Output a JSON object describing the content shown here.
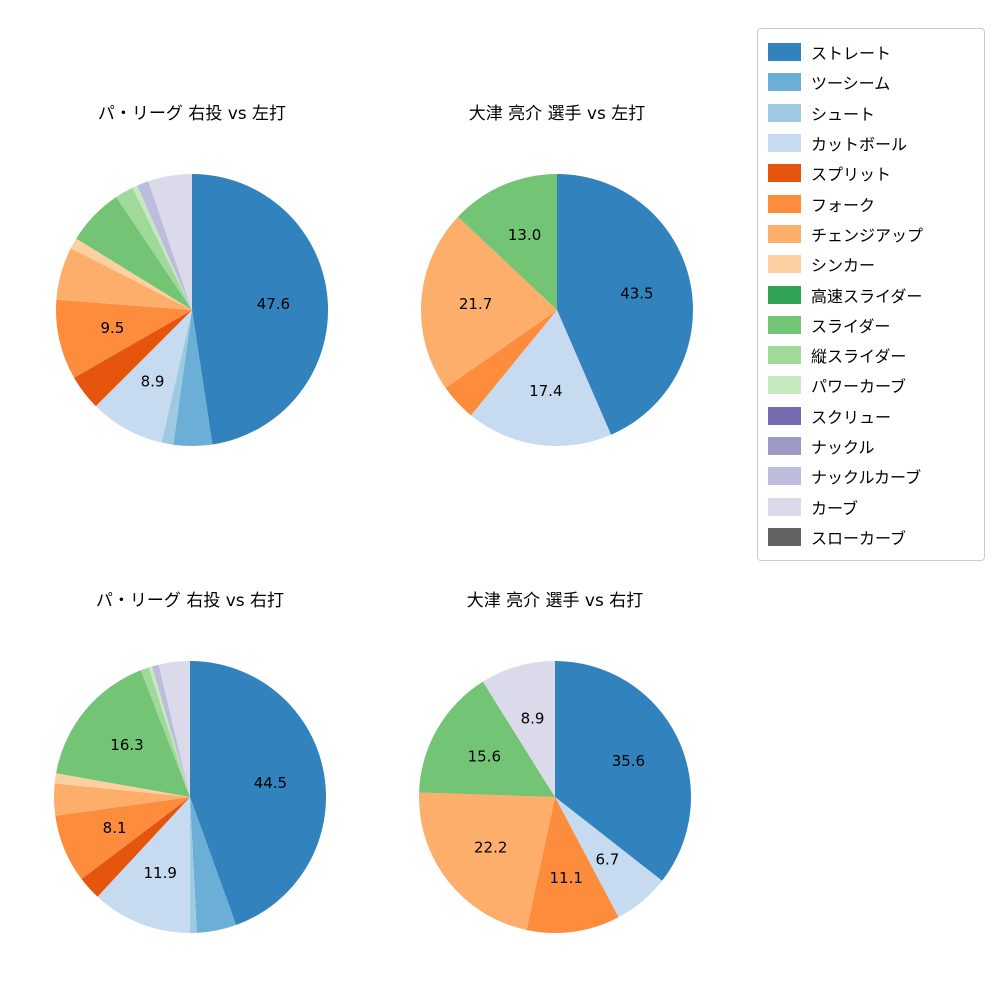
{
  "legend": {
    "items": [
      {
        "label": "ストレート",
        "color": "#3182bd"
      },
      {
        "label": "ツーシーム",
        "color": "#6baed6"
      },
      {
        "label": "シュート",
        "color": "#9ecae1"
      },
      {
        "label": "カットボール",
        "color": "#c6dbef"
      },
      {
        "label": "スプリット",
        "color": "#e6550d"
      },
      {
        "label": "フォーク",
        "color": "#fd8d3c"
      },
      {
        "label": "チェンジアップ",
        "color": "#fdae6b"
      },
      {
        "label": "シンカー",
        "color": "#fdd0a2"
      },
      {
        "label": "高速スライダー",
        "color": "#31a354"
      },
      {
        "label": "スライダー",
        "color": "#74c476"
      },
      {
        "label": "縦スライダー",
        "color": "#a1d99b"
      },
      {
        "label": "パワーカーブ",
        "color": "#c7e9c0"
      },
      {
        "label": "スクリュー",
        "color": "#756bb1"
      },
      {
        "label": "ナックル",
        "color": "#9e9ac8"
      },
      {
        "label": "ナックルカーブ",
        "color": "#bcbddc"
      },
      {
        "label": "カーブ",
        "color": "#dadaeb"
      },
      {
        "label": "スローカーブ",
        "color": "#636363"
      }
    ]
  },
  "chart_data": [
    {
      "type": "pie",
      "title": "パ・リーグ 右投 vs 左打",
      "start_angle_deg": 0,
      "direction": "clockwise",
      "slices": [
        {
          "label": "ストレート",
          "value": 47.6,
          "text": "47.6"
        },
        {
          "label": "ツーシーム",
          "value": 4.6,
          "text": null
        },
        {
          "label": "シュート",
          "value": 1.4,
          "text": null
        },
        {
          "label": "カットボール",
          "value": 8.9,
          "text": "8.9"
        },
        {
          "label": "スプリット",
          "value": 4.2,
          "text": null
        },
        {
          "label": "フォーク",
          "value": 9.5,
          "text": "9.5"
        },
        {
          "label": "チェンジアップ",
          "value": 6.3,
          "text": null
        },
        {
          "label": "シンカー",
          "value": 1.3,
          "text": null
        },
        {
          "label": "スライダー",
          "value": 6.8,
          "text": null
        },
        {
          "label": "縦スライダー",
          "value": 2.2,
          "text": null
        },
        {
          "label": "パワーカーブ",
          "value": 0.6,
          "text": null
        },
        {
          "label": "ナックルカーブ",
          "value": 1.4,
          "text": null
        },
        {
          "label": "カーブ",
          "value": 5.2,
          "text": null
        }
      ]
    },
    {
      "type": "pie",
      "title": "大津 亮介 選手 vs 左打",
      "start_angle_deg": 0,
      "direction": "clockwise",
      "slices": [
        {
          "label": "ストレート",
          "value": 43.5,
          "text": "43.5"
        },
        {
          "label": "カットボール",
          "value": 17.4,
          "text": "17.4"
        },
        {
          "label": "フォーク",
          "value": 4.4,
          "text": null
        },
        {
          "label": "チェンジアップ",
          "value": 21.7,
          "text": "21.7"
        },
        {
          "label": "スライダー",
          "value": 13.0,
          "text": "13.0"
        }
      ]
    },
    {
      "type": "pie",
      "title": "パ・リーグ 右投 vs 右打",
      "start_angle_deg": 0,
      "direction": "clockwise",
      "slices": [
        {
          "label": "ストレート",
          "value": 44.5,
          "text": "44.5"
        },
        {
          "label": "ツーシーム",
          "value": 4.7,
          "text": null
        },
        {
          "label": "シュート",
          "value": 0.8,
          "text": null
        },
        {
          "label": "カットボール",
          "value": 11.9,
          "text": "11.9"
        },
        {
          "label": "スプリット",
          "value": 2.8,
          "text": null
        },
        {
          "label": "フォーク",
          "value": 8.1,
          "text": "8.1"
        },
        {
          "label": "チェンジアップ",
          "value": 3.8,
          "text": null
        },
        {
          "label": "シンカー",
          "value": 1.2,
          "text": null
        },
        {
          "label": "スライダー",
          "value": 16.3,
          "text": "16.3"
        },
        {
          "label": "縦スライダー",
          "value": 1.0,
          "text": null
        },
        {
          "label": "パワーカーブ",
          "value": 0.4,
          "text": null
        },
        {
          "label": "ナックルカーブ",
          "value": 0.8,
          "text": null
        },
        {
          "label": "カーブ",
          "value": 3.7,
          "text": null
        }
      ]
    },
    {
      "type": "pie",
      "title": "大津 亮介 選手 vs 右打",
      "start_angle_deg": 0,
      "direction": "clockwise",
      "slices": [
        {
          "label": "ストレート",
          "value": 35.6,
          "text": "35.6"
        },
        {
          "label": "カットボール",
          "value": 6.7,
          "text": "6.7"
        },
        {
          "label": "フォーク",
          "value": 11.1,
          "text": "11.1"
        },
        {
          "label": "チェンジアップ",
          "value": 22.2,
          "text": "22.2"
        },
        {
          "label": "スライダー",
          "value": 15.6,
          "text": "15.6"
        },
        {
          "label": "カーブ",
          "value": 8.9,
          "text": "8.9"
        }
      ]
    }
  ]
}
